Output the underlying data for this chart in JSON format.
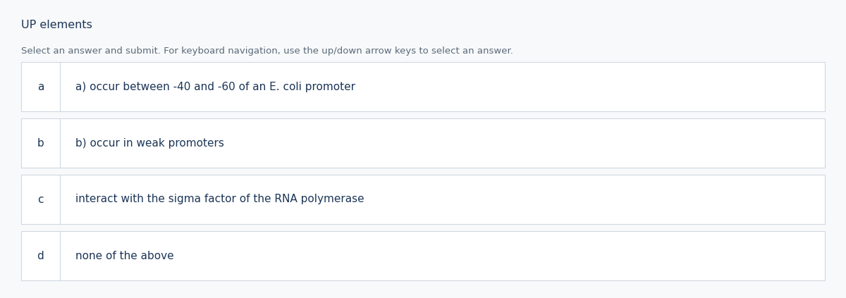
{
  "title": "UP elements",
  "instruction": "Select an answer and submit. For keyboard navigation, use the up/down arrow keys to select an answer.",
  "options": [
    {
      "key": "a",
      "text": "a) occur between -40 and -60 of an E. coli promoter"
    },
    {
      "key": "b",
      "text": "b) occur in weak promoters"
    },
    {
      "key": "c",
      "text": "interact with the sigma factor of the RNA polymerase"
    },
    {
      "key": "d",
      "text": "none of the above"
    }
  ],
  "bg_color": "#f8f9fa",
  "title_color": "#1c3557",
  "instruction_color": "#5a6a7a",
  "option_key_color": "#1c3557",
  "option_text_color": "#1c3557",
  "box_border_color": "#d0d8e0",
  "box_bg_color": "#ffffff",
  "divider_color": "#d0d8e0",
  "title_fontsize": 11.5,
  "instruction_fontsize": 9.5,
  "option_key_fontsize": 11,
  "option_text_fontsize": 11
}
